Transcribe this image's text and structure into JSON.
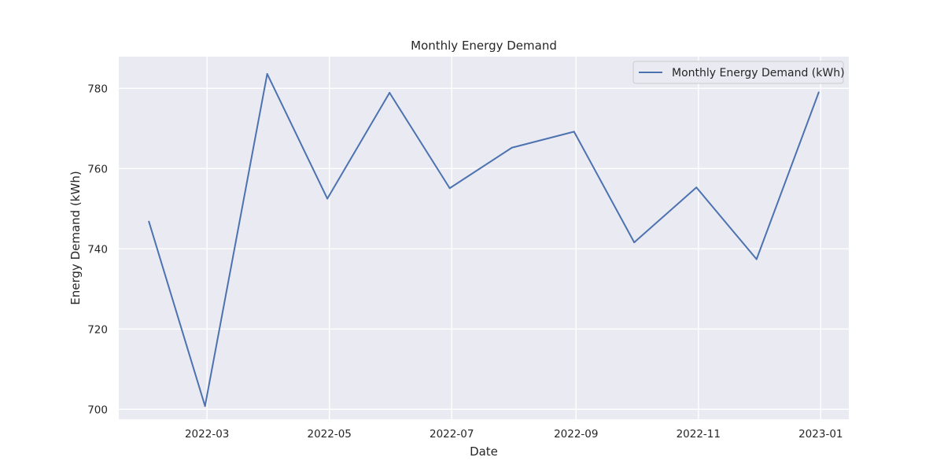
{
  "chart_data": {
    "type": "line",
    "title": "Monthly Energy Demand",
    "xlabel": "Date",
    "ylabel": "Energy Demand (kWh)",
    "x": [
      "2022-01-31",
      "2022-02-28",
      "2022-03-31",
      "2022-04-30",
      "2022-05-31",
      "2022-06-30",
      "2022-07-31",
      "2022-08-31",
      "2022-09-30",
      "2022-10-31",
      "2022-11-30",
      "2022-12-31"
    ],
    "series": [
      {
        "name": "Monthly Energy Demand (kWh)",
        "values": [
          746.8,
          700.8,
          783.6,
          752.5,
          778.9,
          755.1,
          765.2,
          769.2,
          741.6,
          755.3,
          737.4,
          779.0
        ],
        "color": "#4c72b0"
      }
    ],
    "ylim": [
      697.5,
      787.9
    ],
    "xlim": [
      "2022-01-16",
      "2023-01-15"
    ],
    "xticks": [
      "2022-03-01",
      "2022-05-01",
      "2022-07-01",
      "2022-09-01",
      "2022-11-01",
      "2023-01-01"
    ],
    "xtick_labels": [
      "2022-03",
      "2022-05",
      "2022-07",
      "2022-09",
      "2022-11",
      "2023-01"
    ],
    "yticks": [
      700,
      720,
      740,
      760,
      780
    ],
    "grid": true,
    "legend_position": "upper-right",
    "background_color": "#eaeaf2",
    "grid_color": "#ffffff"
  }
}
